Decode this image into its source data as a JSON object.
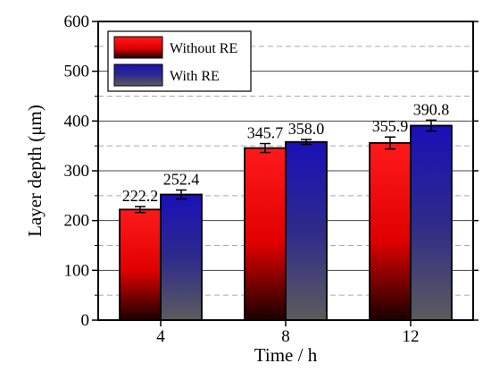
{
  "chart_data": {
    "type": "bar",
    "xlabel": "Time / h",
    "ylabel": "Layer depth (μm)",
    "categories": [
      "4",
      "8",
      "12"
    ],
    "ylim": [
      0,
      600
    ],
    "yticks": [
      0,
      100,
      200,
      300,
      400,
      500,
      600
    ],
    "grid": "horizontal dashed",
    "legend_position": "top-left",
    "series": [
      {
        "name": "Without RE",
        "values": [
          222.2,
          345.7,
          355.9
        ],
        "labels": [
          "222.2",
          "345.7",
          "355.9"
        ],
        "errors": [
          6,
          9,
          12
        ],
        "color_top": "#ff1a1a",
        "color_bottom": "#1a0000"
      },
      {
        "name": "With RE",
        "values": [
          252.4,
          358.0,
          390.8
        ],
        "labels": [
          "252.4",
          "358.0",
          "390.8"
        ],
        "errors": [
          9,
          5,
          11
        ],
        "color_top": "#1a10b8",
        "color_bottom": "#5c5c5c"
      }
    ]
  }
}
